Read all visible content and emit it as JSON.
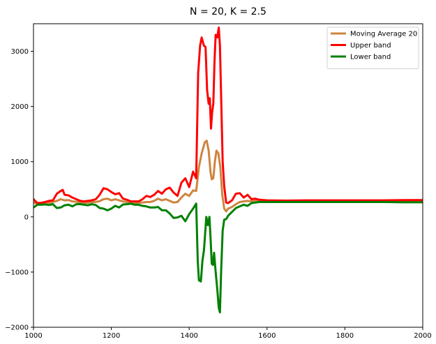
{
  "chart_data": {
    "type": "line",
    "title": "N = 20, K = 2.5",
    "xlabel": "",
    "ylabel": "",
    "xlim": [
      1000,
      2000
    ],
    "ylim": [
      -2000,
      3500
    ],
    "x_ticks": [
      1000,
      1200,
      1400,
      1600,
      1800,
      2000
    ],
    "y_ticks": [
      -2000,
      -1000,
      0,
      1000,
      2000,
      3000
    ],
    "grid": false,
    "legend_position": "top-right",
    "series": [
      {
        "name": "Moving Average 20",
        "color": "#cd853f",
        "points": [
          [
            1000,
            260
          ],
          [
            1010,
            235
          ],
          [
            1020,
            240
          ],
          [
            1030,
            250
          ],
          [
            1040,
            255
          ],
          [
            1050,
            270
          ],
          [
            1060,
            290
          ],
          [
            1070,
            320
          ],
          [
            1080,
            300
          ],
          [
            1090,
            305
          ],
          [
            1100,
            280
          ],
          [
            1110,
            275
          ],
          [
            1120,
            260
          ],
          [
            1130,
            255
          ],
          [
            1140,
            255
          ],
          [
            1150,
            270
          ],
          [
            1160,
            270
          ],
          [
            1170,
            285
          ],
          [
            1180,
            320
          ],
          [
            1190,
            330
          ],
          [
            1200,
            300
          ],
          [
            1210,
            320
          ],
          [
            1220,
            300
          ],
          [
            1230,
            280
          ],
          [
            1240,
            270
          ],
          [
            1250,
            265
          ],
          [
            1260,
            250
          ],
          [
            1270,
            255
          ],
          [
            1280,
            260
          ],
          [
            1290,
            270
          ],
          [
            1300,
            270
          ],
          [
            1310,
            290
          ],
          [
            1320,
            330
          ],
          [
            1330,
            300
          ],
          [
            1340,
            320
          ],
          [
            1350,
            290
          ],
          [
            1360,
            260
          ],
          [
            1370,
            270
          ],
          [
            1380,
            350
          ],
          [
            1390,
            420
          ],
          [
            1400,
            380
          ],
          [
            1410,
            480
          ],
          [
            1418,
            470
          ],
          [
            1425,
            900
          ],
          [
            1432,
            1150
          ],
          [
            1440,
            1350
          ],
          [
            1445,
            1380
          ],
          [
            1450,
            1200
          ],
          [
            1455,
            800
          ],
          [
            1458,
            680
          ],
          [
            1462,
            700
          ],
          [
            1466,
            1000
          ],
          [
            1470,
            1200
          ],
          [
            1475,
            1150
          ],
          [
            1480,
            900
          ],
          [
            1485,
            400
          ],
          [
            1490,
            150
          ],
          [
            1495,
            100
          ],
          [
            1500,
            150
          ],
          [
            1510,
            180
          ],
          [
            1520,
            230
          ],
          [
            1530,
            270
          ],
          [
            1540,
            280
          ],
          [
            1550,
            290
          ],
          [
            1560,
            280
          ],
          [
            1570,
            290
          ],
          [
            1580,
            285
          ],
          [
            1600,
            285
          ],
          [
            1650,
            280
          ],
          [
            1700,
            280
          ],
          [
            1750,
            285
          ],
          [
            1800,
            285
          ],
          [
            1850,
            285
          ],
          [
            1900,
            285
          ],
          [
            1950,
            285
          ],
          [
            2000,
            285
          ]
        ]
      },
      {
        "name": "Upper band",
        "color": "#ff0000",
        "points": [
          [
            1000,
            320
          ],
          [
            1010,
            250
          ],
          [
            1020,
            255
          ],
          [
            1030,
            270
          ],
          [
            1040,
            290
          ],
          [
            1050,
            300
          ],
          [
            1060,
            420
          ],
          [
            1070,
            470
          ],
          [
            1075,
            490
          ],
          [
            1080,
            400
          ],
          [
            1090,
            390
          ],
          [
            1100,
            350
          ],
          [
            1110,
            320
          ],
          [
            1120,
            290
          ],
          [
            1130,
            280
          ],
          [
            1140,
            290
          ],
          [
            1150,
            300
          ],
          [
            1160,
            320
          ],
          [
            1170,
            400
          ],
          [
            1180,
            520
          ],
          [
            1190,
            500
          ],
          [
            1200,
            450
          ],
          [
            1210,
            410
          ],
          [
            1220,
            430
          ],
          [
            1230,
            330
          ],
          [
            1240,
            310
          ],
          [
            1250,
            280
          ],
          [
            1260,
            280
          ],
          [
            1270,
            280
          ],
          [
            1280,
            320
          ],
          [
            1290,
            380
          ],
          [
            1300,
            360
          ],
          [
            1310,
            400
          ],
          [
            1320,
            470
          ],
          [
            1330,
            420
          ],
          [
            1340,
            500
          ],
          [
            1350,
            530
          ],
          [
            1360,
            440
          ],
          [
            1370,
            380
          ],
          [
            1380,
            620
          ],
          [
            1390,
            700
          ],
          [
            1400,
            540
          ],
          [
            1410,
            820
          ],
          [
            1418,
            700
          ],
          [
            1423,
            2600
          ],
          [
            1428,
            3100
          ],
          [
            1432,
            3250
          ],
          [
            1438,
            3100
          ],
          [
            1442,
            3080
          ],
          [
            1446,
            2300
          ],
          [
            1450,
            2050
          ],
          [
            1453,
            2150
          ],
          [
            1456,
            1600
          ],
          [
            1459,
            1900
          ],
          [
            1462,
            2050
          ],
          [
            1465,
            2800
          ],
          [
            1468,
            3300
          ],
          [
            1472,
            3250
          ],
          [
            1476,
            3430
          ],
          [
            1479,
            3100
          ],
          [
            1482,
            2200
          ],
          [
            1486,
            1000
          ],
          [
            1490,
            550
          ],
          [
            1495,
            260
          ],
          [
            1500,
            250
          ],
          [
            1510,
            300
          ],
          [
            1520,
            420
          ],
          [
            1530,
            430
          ],
          [
            1540,
            350
          ],
          [
            1550,
            400
          ],
          [
            1560,
            320
          ],
          [
            1570,
            330
          ],
          [
            1580,
            310
          ],
          [
            1600,
            300
          ],
          [
            1650,
            295
          ],
          [
            1700,
            300
          ],
          [
            1750,
            300
          ],
          [
            1800,
            300
          ],
          [
            1850,
            300
          ],
          [
            1900,
            300
          ],
          [
            1950,
            305
          ],
          [
            2000,
            305
          ]
        ]
      },
      {
        "name": "Lower band",
        "color": "#008000",
        "points": [
          [
            1000,
            170
          ],
          [
            1010,
            220
          ],
          [
            1020,
            220
          ],
          [
            1030,
            225
          ],
          [
            1040,
            215
          ],
          [
            1050,
            230
          ],
          [
            1060,
            160
          ],
          [
            1070,
            170
          ],
          [
            1080,
            210
          ],
          [
            1090,
            220
          ],
          [
            1100,
            190
          ],
          [
            1110,
            230
          ],
          [
            1120,
            230
          ],
          [
            1130,
            220
          ],
          [
            1140,
            210
          ],
          [
            1150,
            230
          ],
          [
            1160,
            215
          ],
          [
            1170,
            160
          ],
          [
            1180,
            150
          ],
          [
            1190,
            120
          ],
          [
            1200,
            150
          ],
          [
            1210,
            200
          ],
          [
            1220,
            170
          ],
          [
            1230,
            225
          ],
          [
            1240,
            230
          ],
          [
            1250,
            240
          ],
          [
            1260,
            220
          ],
          [
            1270,
            220
          ],
          [
            1280,
            200
          ],
          [
            1290,
            190
          ],
          [
            1300,
            170
          ],
          [
            1310,
            170
          ],
          [
            1320,
            180
          ],
          [
            1330,
            120
          ],
          [
            1340,
            120
          ],
          [
            1350,
            60
          ],
          [
            1360,
            -20
          ],
          [
            1370,
            -10
          ],
          [
            1380,
            20
          ],
          [
            1390,
            -80
          ],
          [
            1400,
            50
          ],
          [
            1410,
            150
          ],
          [
            1418,
            240
          ],
          [
            1422,
            -800
          ],
          [
            1425,
            -1150
          ],
          [
            1430,
            -1170
          ],
          [
            1434,
            -800
          ],
          [
            1438,
            -600
          ],
          [
            1441,
            -300
          ],
          [
            1444,
            0
          ],
          [
            1448,
            -150
          ],
          [
            1452,
            0
          ],
          [
            1455,
            -400
          ],
          [
            1458,
            -850
          ],
          [
            1461,
            -870
          ],
          [
            1464,
            -650
          ],
          [
            1468,
            -1000
          ],
          [
            1472,
            -1300
          ],
          [
            1476,
            -1650
          ],
          [
            1479,
            -1730
          ],
          [
            1482,
            -1000
          ],
          [
            1486,
            -250
          ],
          [
            1490,
            -50
          ],
          [
            1495,
            -40
          ],
          [
            1500,
            20
          ],
          [
            1510,
            90
          ],
          [
            1520,
            160
          ],
          [
            1530,
            190
          ],
          [
            1540,
            220
          ],
          [
            1550,
            200
          ],
          [
            1560,
            250
          ],
          [
            1570,
            260
          ],
          [
            1580,
            270
          ],
          [
            1600,
            270
          ],
          [
            1650,
            270
          ],
          [
            1700,
            270
          ],
          [
            1750,
            270
          ],
          [
            1800,
            270
          ],
          [
            1850,
            270
          ],
          [
            1900,
            270
          ],
          [
            1950,
            265
          ],
          [
            2000,
            265
          ]
        ]
      }
    ]
  }
}
